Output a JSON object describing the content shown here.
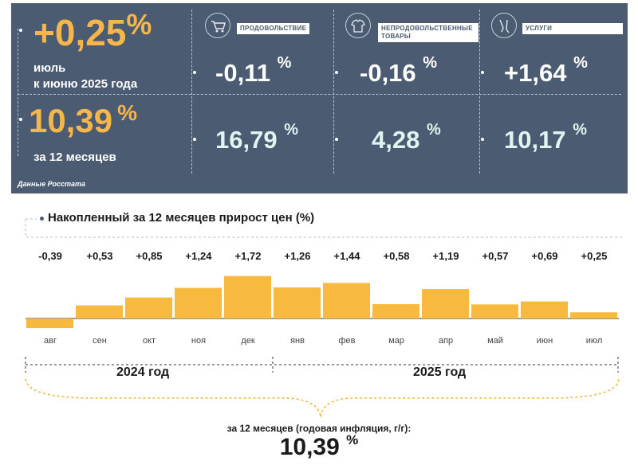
{
  "summary": {
    "monthly_value": "+0,25",
    "monthly_unit": "%",
    "monthly_line1": "июль",
    "monthly_line2": "к июню 2025 года",
    "annual_value": "10,39",
    "annual_unit": "%",
    "annual_label": "за 12 месяцев",
    "source": "Данные Росстата"
  },
  "categories": [
    {
      "name": "ПРОДОВОЛЬСТВИЕ",
      "icon": "shopping-cart-icon",
      "monthly": "-0,11",
      "annual": "16,79"
    },
    {
      "name": "НЕПРОДОВОЛЬСТВЕННЫЕ ТОВАРЫ",
      "icon": "shirt-icon",
      "monthly": "-0,16",
      "annual": "4,28"
    },
    {
      "name": "УСЛУГИ",
      "icon": "tools-icon",
      "monthly": "+1,64",
      "annual": "10,17"
    }
  ],
  "percent_sign": "%",
  "chart_data": {
    "type": "bar",
    "title": "Накопленный за 12 месяцев прирост цен (%)",
    "categories": [
      "авг",
      "сен",
      "окт",
      "ноя",
      "дек",
      "янв",
      "фев",
      "мар",
      "апр",
      "май",
      "июн",
      "июл"
    ],
    "values": [
      -0.39,
      0.53,
      0.85,
      1.24,
      1.72,
      1.26,
      1.44,
      0.58,
      1.19,
      0.57,
      0.69,
      0.25
    ],
    "value_labels": [
      "-0,39",
      "+0,53",
      "+0,85",
      "+1,24",
      "+1,72",
      "+1,26",
      "+1,44",
      "+0,58",
      "+1,19",
      "+0,57",
      "+0,69",
      "+0,25"
    ],
    "year_groups": [
      {
        "label": "2024 год",
        "months": [
          "авг",
          "сен",
          "окт",
          "ноя",
          "дек"
        ]
      },
      {
        "label": "2025 год",
        "months": [
          "янв",
          "фев",
          "мар",
          "апр",
          "май",
          "июн",
          "июл"
        ]
      }
    ],
    "bar_color": "#f7b93e"
  },
  "annual": {
    "caption": "за 12 месяцев (годовая инфляция, г/г):",
    "value": "10,39",
    "unit": "%"
  },
  "colors": {
    "panel": "#4a5b72",
    "accent": "#f7b64a",
    "bars": "#f7b93e"
  }
}
